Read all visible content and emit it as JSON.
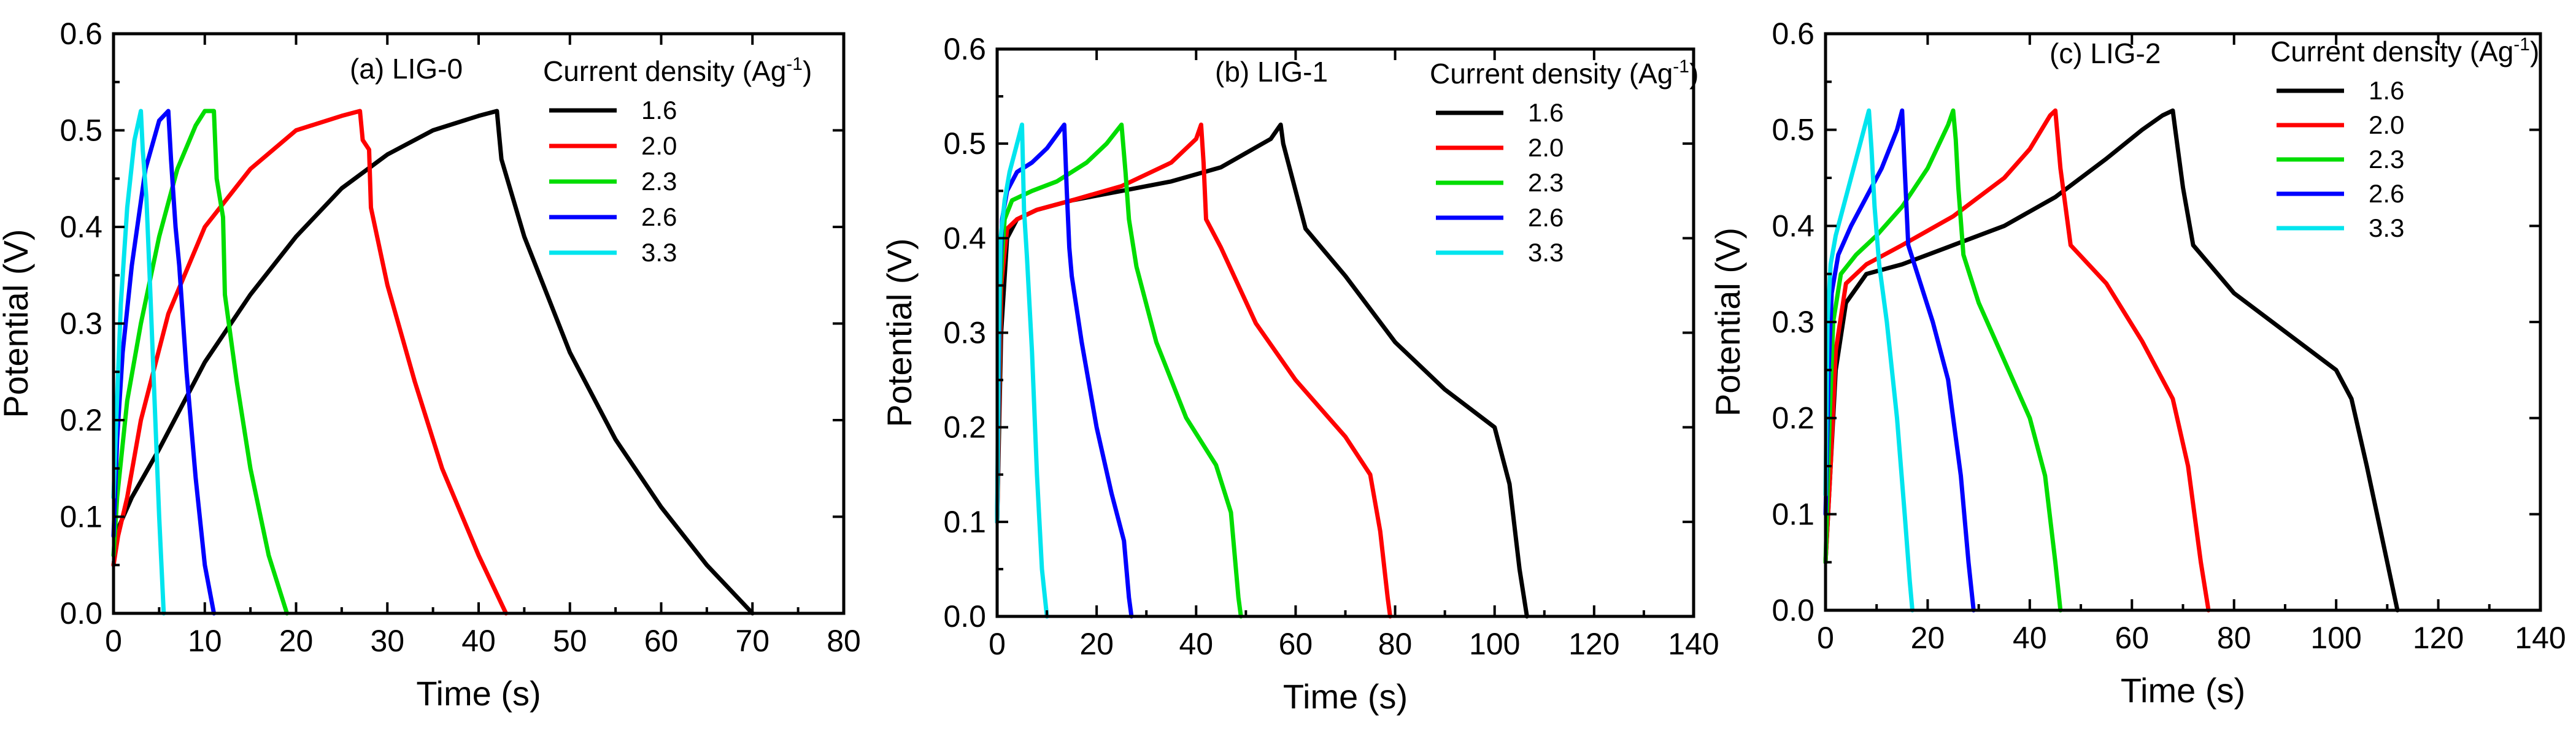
{
  "figure": {
    "legend_title_prefix": "Current density (Ag",
    "legend_title_sup": "-1",
    "legend_title_suffix": ")"
  },
  "chart_data": [
    {
      "type": "line",
      "title": "(a) LIG-0",
      "xlabel": "Time (s)",
      "ylabel": "Potential (V)",
      "xlim": [
        0,
        80
      ],
      "ylim": [
        0,
        0.6
      ],
      "xticks": [
        0,
        10,
        20,
        30,
        40,
        50,
        60,
        70,
        80
      ],
      "yticks": [
        0.0,
        0.1,
        0.2,
        0.3,
        0.4,
        0.5,
        0.6
      ],
      "xtick_labels": [
        "0",
        "10",
        "20",
        "30",
        "40",
        "50",
        "60",
        "70",
        "80"
      ],
      "ytick_labels": [
        "0.0",
        "0.1",
        "0.2",
        "0.3",
        "0.4",
        "0.5",
        "0.6"
      ],
      "legend": "top-right",
      "series": [
        {
          "name": "1.6",
          "color": "#000000",
          "x": [
            0,
            0.6,
            2,
            5,
            10,
            15,
            20,
            25,
            30,
            35,
            40,
            42,
            42.2,
            42.5,
            45,
            50,
            55,
            60,
            65,
            70
          ],
          "y": [
            0.05,
            0.09,
            0.12,
            0.17,
            0.26,
            0.33,
            0.39,
            0.44,
            0.475,
            0.5,
            0.515,
            0.52,
            0.5,
            0.47,
            0.39,
            0.27,
            0.18,
            0.11,
            0.05,
            0.0
          ]
        },
        {
          "name": "2.0",
          "color": "#ff0000",
          "x": [
            0,
            0.5,
            1.5,
            3,
            6,
            10,
            15,
            20,
            25,
            27,
            27.3,
            28,
            28.2,
            30,
            33,
            36,
            40,
            43
          ],
          "y": [
            0.05,
            0.08,
            0.12,
            0.2,
            0.31,
            0.4,
            0.46,
            0.5,
            0.515,
            0.52,
            0.49,
            0.48,
            0.42,
            0.34,
            0.24,
            0.15,
            0.06,
            0.0
          ]
        },
        {
          "name": "2.3",
          "color": "#00dd00",
          "x": [
            0,
            0.4,
            1.5,
            3,
            5,
            7,
            9,
            10,
            11,
            11.3,
            12,
            12.2,
            13.5,
            15,
            17,
            19
          ],
          "y": [
            0.06,
            0.12,
            0.22,
            0.3,
            0.39,
            0.46,
            0.505,
            0.52,
            0.52,
            0.45,
            0.41,
            0.33,
            0.24,
            0.15,
            0.06,
            0.0
          ]
        },
        {
          "name": "2.6",
          "color": "#0000ff",
          "x": [
            0,
            0.4,
            1,
            2,
            3.5,
            5,
            6,
            6.3,
            6.8,
            7.2,
            8,
            9,
            10,
            11
          ],
          "y": [
            0.08,
            0.18,
            0.27,
            0.36,
            0.46,
            0.51,
            0.52,
            0.47,
            0.4,
            0.36,
            0.25,
            0.14,
            0.05,
            0.0
          ]
        },
        {
          "name": "3.3",
          "color": "#00e5ee",
          "x": [
            0,
            0.3,
            0.8,
            1.5,
            2.3,
            3,
            3.2,
            3.6,
            4,
            4.5,
            5,
            5.5
          ],
          "y": [
            0.12,
            0.2,
            0.32,
            0.42,
            0.49,
            0.52,
            0.48,
            0.43,
            0.34,
            0.22,
            0.1,
            0.0
          ]
        }
      ]
    },
    {
      "type": "line",
      "title": "(b) LIG-1",
      "xlabel": "Time (s)",
      "ylabel": "Potential (V)",
      "xlim": [
        0,
        140
      ],
      "ylim": [
        0,
        0.6
      ],
      "xticks": [
        0,
        20,
        40,
        60,
        80,
        100,
        120,
        140
      ],
      "yticks": [
        0.0,
        0.1,
        0.2,
        0.3,
        0.4,
        0.5,
        0.6
      ],
      "xtick_labels": [
        "0",
        "20",
        "40",
        "60",
        "80",
        "100",
        "120",
        "140"
      ],
      "ytick_labels": [
        "0.0",
        "0.1",
        "0.2",
        "0.3",
        "0.4",
        "0.5",
        "0.6"
      ],
      "legend": "top-right",
      "series": [
        {
          "name": "1.6",
          "color": "#000000",
          "x": [
            0,
            0.8,
            2,
            4,
            8,
            15,
            25,
            35,
            45,
            50,
            55,
            57,
            57.5,
            58.5,
            62,
            70,
            80,
            90,
            100,
            103,
            105,
            106.5
          ],
          "y": [
            0.1,
            0.3,
            0.4,
            0.42,
            0.43,
            0.44,
            0.45,
            0.46,
            0.475,
            0.49,
            0.505,
            0.52,
            0.5,
            0.48,
            0.41,
            0.36,
            0.29,
            0.24,
            0.2,
            0.14,
            0.05,
            0.0
          ]
        },
        {
          "name": "2.0",
          "color": "#ff0000",
          "x": [
            0,
            0.8,
            2,
            4,
            8,
            15,
            25,
            35,
            40,
            41,
            41.5,
            42,
            45,
            52,
            60,
            70,
            75,
            77,
            78.5,
            79
          ],
          "y": [
            0.1,
            0.35,
            0.41,
            0.42,
            0.43,
            0.44,
            0.455,
            0.48,
            0.505,
            0.52,
            0.48,
            0.42,
            0.39,
            0.31,
            0.25,
            0.19,
            0.15,
            0.09,
            0.02,
            0.0
          ]
        },
        {
          "name": "2.3",
          "color": "#00dd00",
          "x": [
            0,
            0.6,
            1.5,
            3,
            7,
            12,
            18,
            22,
            25,
            25.8,
            26.5,
            28,
            32,
            38,
            44,
            47,
            48.5,
            49
          ],
          "y": [
            0.1,
            0.35,
            0.42,
            0.44,
            0.45,
            0.46,
            0.48,
            0.5,
            0.52,
            0.47,
            0.42,
            0.37,
            0.29,
            0.21,
            0.16,
            0.11,
            0.02,
            0.0
          ]
        },
        {
          "name": "2.6",
          "color": "#0000ff",
          "x": [
            0,
            0.5,
            1,
            2,
            4,
            7,
            10,
            13.5,
            14,
            14.5,
            15,
            17,
            20,
            23,
            25.5,
            26.5,
            27
          ],
          "y": [
            0.1,
            0.35,
            0.42,
            0.45,
            0.47,
            0.48,
            0.495,
            0.52,
            0.45,
            0.39,
            0.36,
            0.29,
            0.2,
            0.13,
            0.08,
            0.02,
            0.0
          ]
        },
        {
          "name": "3.3",
          "color": "#00e5ee",
          "x": [
            0,
            0.3,
            0.7,
            1.5,
            2.5,
            3.5,
            5,
            5.4,
            6,
            7,
            8,
            9,
            10
          ],
          "y": [
            0.1,
            0.3,
            0.4,
            0.44,
            0.47,
            0.49,
            0.52,
            0.43,
            0.38,
            0.28,
            0.15,
            0.05,
            0.0
          ]
        }
      ]
    },
    {
      "type": "line",
      "title": "(c) LIG-2",
      "xlabel": "Time (s)",
      "ylabel": "Potential (V)",
      "xlim": [
        0,
        140
      ],
      "ylim": [
        0,
        0.6
      ],
      "xticks": [
        0,
        20,
        40,
        60,
        80,
        100,
        120,
        140
      ],
      "yticks": [
        0.0,
        0.1,
        0.2,
        0.3,
        0.4,
        0.5,
        0.6
      ],
      "xtick_labels": [
        "0",
        "20",
        "40",
        "60",
        "80",
        "100",
        "120",
        "140"
      ],
      "ytick_labels": [
        "0.0",
        "0.1",
        "0.2",
        "0.3",
        "0.4",
        "0.5",
        "0.6"
      ],
      "legend": "top-right",
      "series": [
        {
          "name": "1.6",
          "color": "#000000",
          "x": [
            0,
            1,
            2,
            4,
            8,
            15,
            25,
            35,
            45,
            55,
            62,
            66,
            68,
            68.5,
            70,
            72,
            80,
            90,
            100,
            103,
            106,
            110,
            112
          ],
          "y": [
            0.05,
            0.15,
            0.25,
            0.32,
            0.35,
            0.36,
            0.38,
            0.4,
            0.43,
            0.47,
            0.5,
            0.515,
            0.52,
            0.5,
            0.44,
            0.38,
            0.33,
            0.29,
            0.25,
            0.22,
            0.15,
            0.05,
            0.0
          ]
        },
        {
          "name": "2.0",
          "color": "#ff0000",
          "x": [
            0,
            1,
            2,
            4,
            8,
            15,
            25,
            35,
            40,
            44,
            45,
            46,
            48,
            55,
            62,
            68,
            71,
            73.5,
            75
          ],
          "y": [
            0.05,
            0.15,
            0.27,
            0.34,
            0.36,
            0.38,
            0.41,
            0.45,
            0.48,
            0.515,
            0.52,
            0.46,
            0.38,
            0.34,
            0.28,
            0.22,
            0.15,
            0.05,
            0.0
          ]
        },
        {
          "name": "2.3",
          "color": "#00dd00",
          "x": [
            0,
            0.8,
            1.5,
            3,
            6,
            10,
            15,
            20,
            24,
            25,
            25.5,
            26,
            27,
            30,
            35,
            40,
            43,
            45,
            46
          ],
          "y": [
            0.05,
            0.2,
            0.3,
            0.35,
            0.37,
            0.39,
            0.42,
            0.46,
            0.505,
            0.52,
            0.49,
            0.44,
            0.37,
            0.32,
            0.26,
            0.2,
            0.14,
            0.05,
            0.0
          ]
        },
        {
          "name": "2.6",
          "color": "#0000ff",
          "x": [
            0,
            0.6,
            1.2,
            2.5,
            5,
            8,
            11,
            14,
            15,
            15.5,
            16.2,
            18,
            21,
            24,
            26.5,
            28,
            29
          ],
          "y": [
            0.1,
            0.25,
            0.33,
            0.37,
            0.4,
            0.43,
            0.46,
            0.5,
            0.52,
            0.46,
            0.38,
            0.35,
            0.3,
            0.24,
            0.14,
            0.05,
            0.0
          ]
        },
        {
          "name": "3.3",
          "color": "#00e5ee",
          "x": [
            0,
            0.4,
            1,
            2,
            3.5,
            5,
            7,
            8.5,
            9,
            9.6,
            10.5,
            12,
            14,
            15.5,
            16.5,
            17
          ],
          "y": [
            0.12,
            0.3,
            0.36,
            0.39,
            0.42,
            0.45,
            0.49,
            0.52,
            0.48,
            0.42,
            0.36,
            0.3,
            0.2,
            0.1,
            0.03,
            0.0
          ]
        }
      ]
    }
  ]
}
